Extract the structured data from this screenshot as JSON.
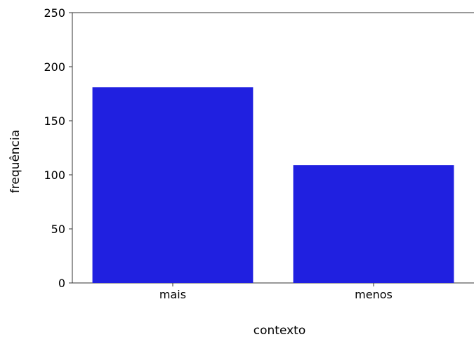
{
  "chart_data": {
    "type": "bar",
    "categories": [
      "mais",
      "menos"
    ],
    "values": [
      181,
      109
    ],
    "xlabel": "contexto",
    "ylabel": "frequência",
    "ylim": [
      0,
      250
    ],
    "yticks": [
      0,
      50,
      100,
      150,
      200,
      250
    ],
    "bar_color": "#2020e0",
    "grid": false
  }
}
